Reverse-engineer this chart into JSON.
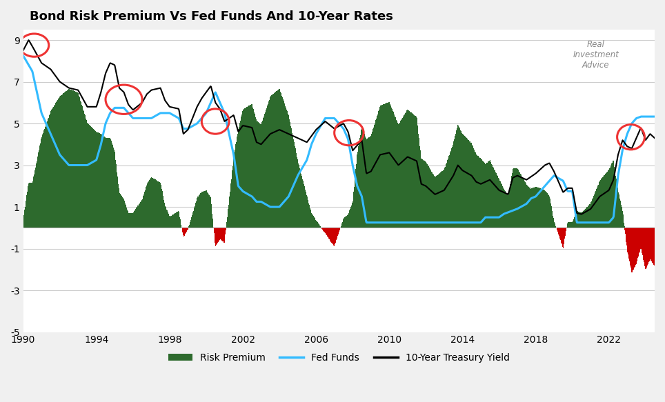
{
  "title": "Bond Risk Premium Vs Fed Funds And 10-Year Rates",
  "title_fontsize": 13,
  "background_color": "#f0f0f0",
  "plot_bg_color": "#ffffff",
  "ylabel": "",
  "xlabel": "",
  "ylim": [
    -5,
    9.5
  ],
  "xlim": [
    1990.0,
    2024.5
  ],
  "yticks": [
    -5,
    -3,
    -1,
    1,
    3,
    5,
    7,
    9
  ],
  "xticks": [
    1990,
    1994,
    1998,
    2002,
    2006,
    2010,
    2014,
    2018,
    2022
  ],
  "legend_labels": [
    "Risk Premium",
    "Fed Funds",
    "10-Year Treasury Yield"
  ],
  "risk_premium_color": "#2d6a2d",
  "risk_premium_neg_color": "#cc0000",
  "fed_funds_color": "#33bbff",
  "treasury_color": "#000000",
  "circle_color": "#ee3333",
  "circle_params": [
    [
      1990.6,
      8.75,
      1.6,
      1.1
    ],
    [
      1995.5,
      6.15,
      2.0,
      1.4
    ],
    [
      2000.5,
      5.1,
      1.5,
      1.2
    ],
    [
      2007.8,
      4.55,
      1.6,
      1.2
    ],
    [
      2023.2,
      4.35,
      1.5,
      1.2
    ]
  ]
}
